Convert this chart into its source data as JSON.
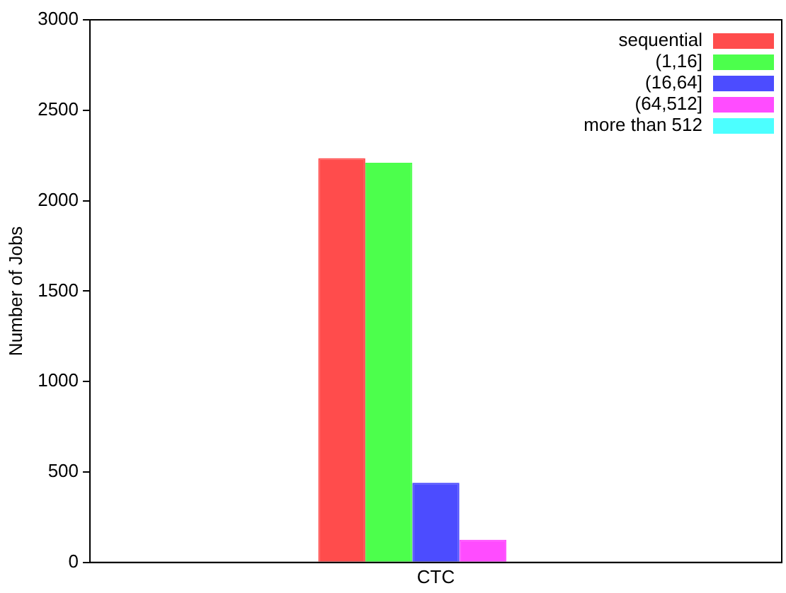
{
  "chart_data": {
    "type": "bar",
    "ylabel": "Number of Jobs",
    "categories": [
      "CTC"
    ],
    "series": [
      {
        "name": "sequential",
        "color": "#ff4c4c",
        "values": [
          2235
        ]
      },
      {
        "name": "(1,16]",
        "color": "#4cff4c",
        "values": [
          2210
        ]
      },
      {
        "name": "(16,64]",
        "color": "#4c4cff",
        "values": [
          440
        ]
      },
      {
        "name": "(64,512]",
        "color": "#ff4cff",
        "values": [
          125
        ]
      },
      {
        "name": "more than 512",
        "color": "#4cffff",
        "values": [
          null
        ]
      }
    ],
    "ylim": [
      0,
      3000
    ],
    "yticks": [
      0,
      500,
      1000,
      1500,
      2000,
      2500,
      3000
    ],
    "legend": "top right"
  }
}
